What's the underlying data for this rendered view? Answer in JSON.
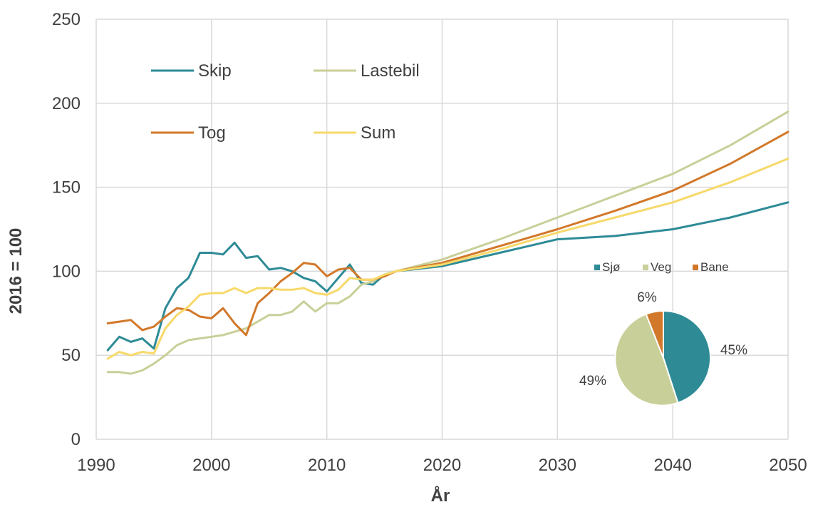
{
  "chart_data": [
    {
      "type": "line",
      "ylabel": "2016 = 100",
      "xlabel": "År",
      "xlim": [
        1990,
        2050
      ],
      "ylim": [
        0,
        250
      ],
      "x_ticks": [
        "1990",
        "2000",
        "2010",
        "2020",
        "2030",
        "2040",
        "2050"
      ],
      "y_ticks": [
        "0",
        "50",
        "100",
        "150",
        "200",
        "250"
      ],
      "grid": "on",
      "legend": "top-left",
      "series": [
        {
          "name": "Skip",
          "color": "#2e8b96",
          "points": [
            [
              1991,
              53
            ],
            [
              1992,
              61
            ],
            [
              1993,
              58
            ],
            [
              1994,
              60
            ],
            [
              1995,
              54
            ],
            [
              1996,
              78
            ],
            [
              1997,
              90
            ],
            [
              1998,
              96
            ],
            [
              1999,
              111
            ],
            [
              2000,
              111
            ],
            [
              2001,
              110
            ],
            [
              2002,
              117
            ],
            [
              2003,
              108
            ],
            [
              2004,
              109
            ],
            [
              2005,
              101
            ],
            [
              2006,
              102
            ],
            [
              2007,
              100
            ],
            [
              2008,
              96
            ],
            [
              2009,
              94
            ],
            [
              2010,
              88
            ],
            [
              2011,
              96
            ],
            [
              2012,
              104
            ],
            [
              2013,
              93
            ],
            [
              2014,
              92
            ],
            [
              2015,
              98
            ],
            [
              2016,
              100
            ],
            [
              2020,
              103
            ],
            [
              2025,
              111
            ],
            [
              2030,
              119
            ],
            [
              2035,
              121
            ],
            [
              2040,
              125
            ],
            [
              2045,
              132
            ],
            [
              2050,
              141
            ]
          ]
        },
        {
          "name": "Lastebil",
          "color": "#c9cf98",
          "points": [
            [
              1991,
              40
            ],
            [
              1992,
              40
            ],
            [
              1993,
              39
            ],
            [
              1994,
              41
            ],
            [
              1995,
              45
            ],
            [
              1996,
              50
            ],
            [
              1997,
              56
            ],
            [
              1998,
              59
            ],
            [
              1999,
              60
            ],
            [
              2000,
              61
            ],
            [
              2001,
              62
            ],
            [
              2002,
              64
            ],
            [
              2003,
              66
            ],
            [
              2004,
              70
            ],
            [
              2005,
              74
            ],
            [
              2006,
              74
            ],
            [
              2007,
              76
            ],
            [
              2008,
              82
            ],
            [
              2009,
              76
            ],
            [
              2010,
              81
            ],
            [
              2011,
              81
            ],
            [
              2012,
              85
            ],
            [
              2013,
              92
            ],
            [
              2014,
              94
            ],
            [
              2015,
              98
            ],
            [
              2016,
              100
            ],
            [
              2020,
              107
            ],
            [
              2025,
              119
            ],
            [
              2030,
              132
            ],
            [
              2035,
              145
            ],
            [
              2040,
              158
            ],
            [
              2045,
              175
            ],
            [
              2050,
              195
            ]
          ]
        },
        {
          "name": "Tog",
          "color": "#d2782a",
          "points": [
            [
              1991,
              69
            ],
            [
              1992,
              70
            ],
            [
              1993,
              71
            ],
            [
              1994,
              65
            ],
            [
              1995,
              67
            ],
            [
              1996,
              73
            ],
            [
              1997,
              78
            ],
            [
              1998,
              77
            ],
            [
              1999,
              73
            ],
            [
              2000,
              72
            ],
            [
              2001,
              78
            ],
            [
              2002,
              69
            ],
            [
              2003,
              62
            ],
            [
              2004,
              81
            ],
            [
              2005,
              87
            ],
            [
              2006,
              94
            ],
            [
              2007,
              99
            ],
            [
              2008,
              105
            ],
            [
              2009,
              104
            ],
            [
              2010,
              97
            ],
            [
              2011,
              101
            ],
            [
              2012,
              102
            ],
            [
              2013,
              95
            ],
            [
              2014,
              95
            ],
            [
              2015,
              97
            ],
            [
              2016,
              100
            ],
            [
              2020,
              105
            ],
            [
              2025,
              115
            ],
            [
              2030,
              125
            ],
            [
              2035,
              136
            ],
            [
              2040,
              148
            ],
            [
              2045,
              164
            ],
            [
              2050,
              183
            ]
          ]
        },
        {
          "name": "Sum",
          "color": "#f7d96a",
          "points": [
            [
              1991,
              48
            ],
            [
              1992,
              52
            ],
            [
              1993,
              50
            ],
            [
              1994,
              52
            ],
            [
              1995,
              51
            ],
            [
              1996,
              66
            ],
            [
              1997,
              74
            ],
            [
              1998,
              79
            ],
            [
              1999,
              86
            ],
            [
              2000,
              87
            ],
            [
              2001,
              87
            ],
            [
              2002,
              90
            ],
            [
              2003,
              87
            ],
            [
              2004,
              90
            ],
            [
              2005,
              90
            ],
            [
              2006,
              89
            ],
            [
              2007,
              89
            ],
            [
              2008,
              90
            ],
            [
              2009,
              87
            ],
            [
              2010,
              86
            ],
            [
              2011,
              89
            ],
            [
              2012,
              96
            ],
            [
              2013,
              95
            ],
            [
              2014,
              95
            ],
            [
              2015,
              98
            ],
            [
              2016,
              100
            ],
            [
              2020,
              104
            ],
            [
              2025,
              113
            ],
            [
              2030,
              123
            ],
            [
              2035,
              132
            ],
            [
              2040,
              141
            ],
            [
              2045,
              153
            ],
            [
              2050,
              167
            ]
          ]
        }
      ]
    },
    {
      "type": "pie",
      "legend": "top",
      "slices": [
        {
          "name": "Sjø",
          "value": 45,
          "label": "45%",
          "color": "#2e8b96"
        },
        {
          "name": "Veg",
          "value": 49,
          "label": "49%",
          "color": "#c9cf98"
        },
        {
          "name": "Bane",
          "value": 6,
          "label": "6%",
          "color": "#d2782a"
        }
      ]
    }
  ]
}
